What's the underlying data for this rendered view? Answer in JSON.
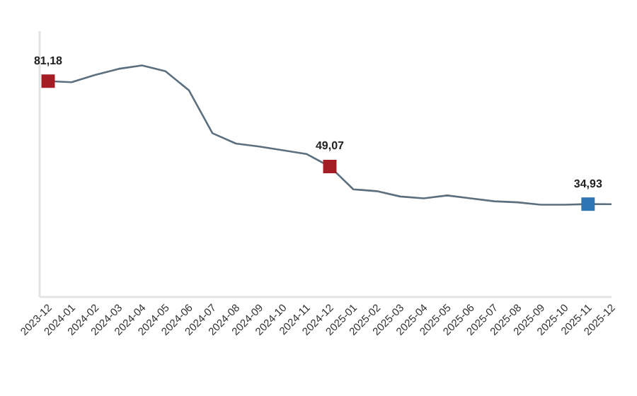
{
  "chart_data": {
    "type": "line",
    "categories": [
      "2023-12",
      "2024-01",
      "2024-02",
      "2024-03",
      "2024-04",
      "2024-05",
      "2024-06",
      "2024-07",
      "2024-08",
      "2024-09",
      "2024-10",
      "2024-11",
      "2024-12",
      "2025-01",
      "2025-02",
      "2025-03",
      "2025-04",
      "2025-05",
      "2025-06",
      "2025-07",
      "2025-08",
      "2025-09",
      "2025-10",
      "2025-11",
      "2025-12"
    ],
    "ylim": [
      0,
      100
    ],
    "series": [
      {
        "color": "#5b6f7e",
        "marker": "none",
        "values": [
          81.18,
          80.8,
          83.5,
          85.8,
          87.1,
          84.9,
          77.7,
          61.6,
          57.7,
          56.6,
          55.2,
          53.8,
          49.07,
          40.5,
          39.8,
          37.8,
          37.1,
          38.2,
          37.1,
          36.0,
          35.6,
          34.7,
          34.7,
          34.93,
          34.9
        ]
      },
      {
        "type": "scatter",
        "marker": "square",
        "values": [
          81.18,
          null,
          null,
          null,
          null,
          null,
          null,
          null,
          null,
          null,
          null,
          null,
          49.07,
          null,
          null,
          null,
          null,
          null,
          null,
          null,
          null,
          null,
          null,
          34.93,
          null
        ],
        "colors": [
          "#a51d24",
          null,
          null,
          null,
          null,
          null,
          null,
          null,
          null,
          null,
          null,
          null,
          "#a51d24",
          null,
          null,
          null,
          null,
          null,
          null,
          null,
          null,
          null,
          null,
          "#2e75b6",
          null
        ],
        "value_labels": [
          "81,18",
          null,
          null,
          null,
          null,
          null,
          null,
          null,
          null,
          null,
          null,
          null,
          "49,07",
          null,
          null,
          null,
          null,
          null,
          null,
          null,
          null,
          null,
          null,
          "34,93",
          null
        ]
      }
    ]
  }
}
